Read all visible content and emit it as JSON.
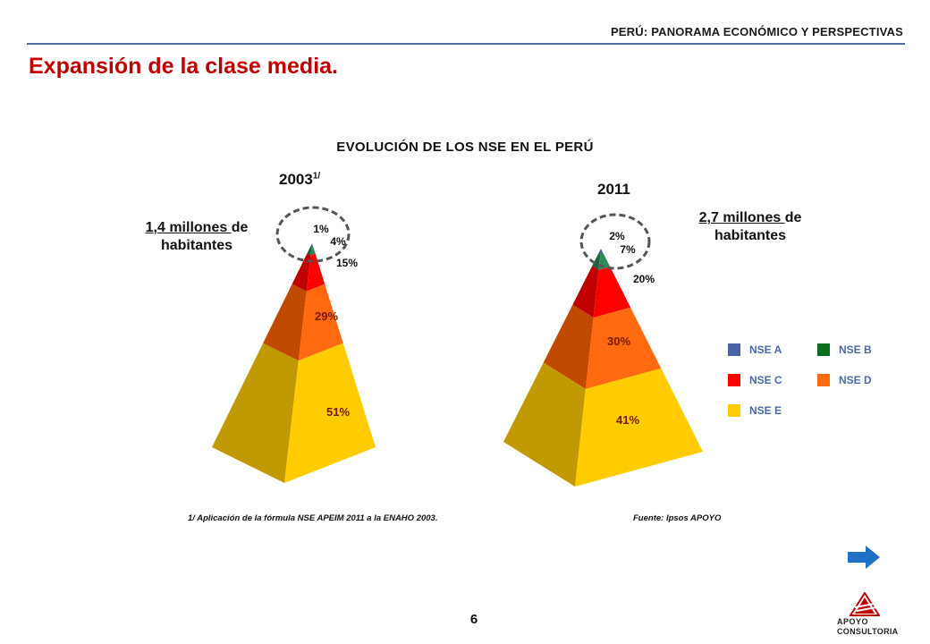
{
  "header": {
    "text": "PERÚ: PANORAMA ECONÓMICO Y PERSPECTIVAS"
  },
  "page_title": "Expansión de la clase media.",
  "chart_data": {
    "type": "pyramid",
    "title": "EVOLUCIÓN DE LOS NSE EN EL PERÚ",
    "series": [
      {
        "year": "2003",
        "year_note": "1/",
        "population_underlined": "1,4 millones ",
        "population_rest": "de",
        "population_line2": "habitantes",
        "levels": [
          {
            "name": "NSE A",
            "label": "1%",
            "value": 1
          },
          {
            "name": "NSE B",
            "label": "4%",
            "value": 4
          },
          {
            "name": "NSE C",
            "label": "15%",
            "value": 15
          },
          {
            "name": "NSE D",
            "label": "29%",
            "value": 29
          },
          {
            "name": "NSE E",
            "label": "51%",
            "value": 51
          }
        ]
      },
      {
        "year": "2011",
        "year_note": "",
        "population_underlined": "2,7 millones ",
        "population_rest": "de",
        "population_line2": "habitantes",
        "levels": [
          {
            "name": "NSE A",
            "label": "2%",
            "value": 2
          },
          {
            "name": "NSE B",
            "label": "7%",
            "value": 7
          },
          {
            "name": "NSE C",
            "label": "20%",
            "value": 20
          },
          {
            "name": "NSE D",
            "label": "30%",
            "value": 30
          },
          {
            "name": "NSE E",
            "label": "41%",
            "value": 41
          }
        ]
      }
    ],
    "legend": [
      {
        "name": "NSE A",
        "color": "#4a62a8"
      },
      {
        "name": "NSE B",
        "color": "#0a6e1e"
      },
      {
        "name": "NSE C",
        "color": "#ff0000"
      },
      {
        "name": "NSE D",
        "color": "#ff6a10"
      },
      {
        "name": "NSE E",
        "color": "#ffcc00"
      }
    ],
    "colors": {
      "NSE A": "#4a62a8",
      "NSE B": "#2e8b57",
      "NSE C": "#ff0000",
      "NSE D": "#ff6a10",
      "NSE E": "#ffcc00"
    },
    "shade_colors": {
      "NSE A": "#33477d",
      "NSE B": "#1f6040",
      "NSE C": "#c00000",
      "NSE D": "#c04a00",
      "NSE E": "#c09a00"
    }
  },
  "footnote": "1/ Aplicación de la fórmula NSE APEIM 2011 a la ENAHO 2003.",
  "source": "Fuente: Ipsos APOYO",
  "page_number": "6",
  "logo": {
    "line1": "APOYO",
    "line2": "CONSULTORIA"
  },
  "nav": {
    "icon": "arrow-right-icon",
    "color": "#1f6fc4"
  }
}
